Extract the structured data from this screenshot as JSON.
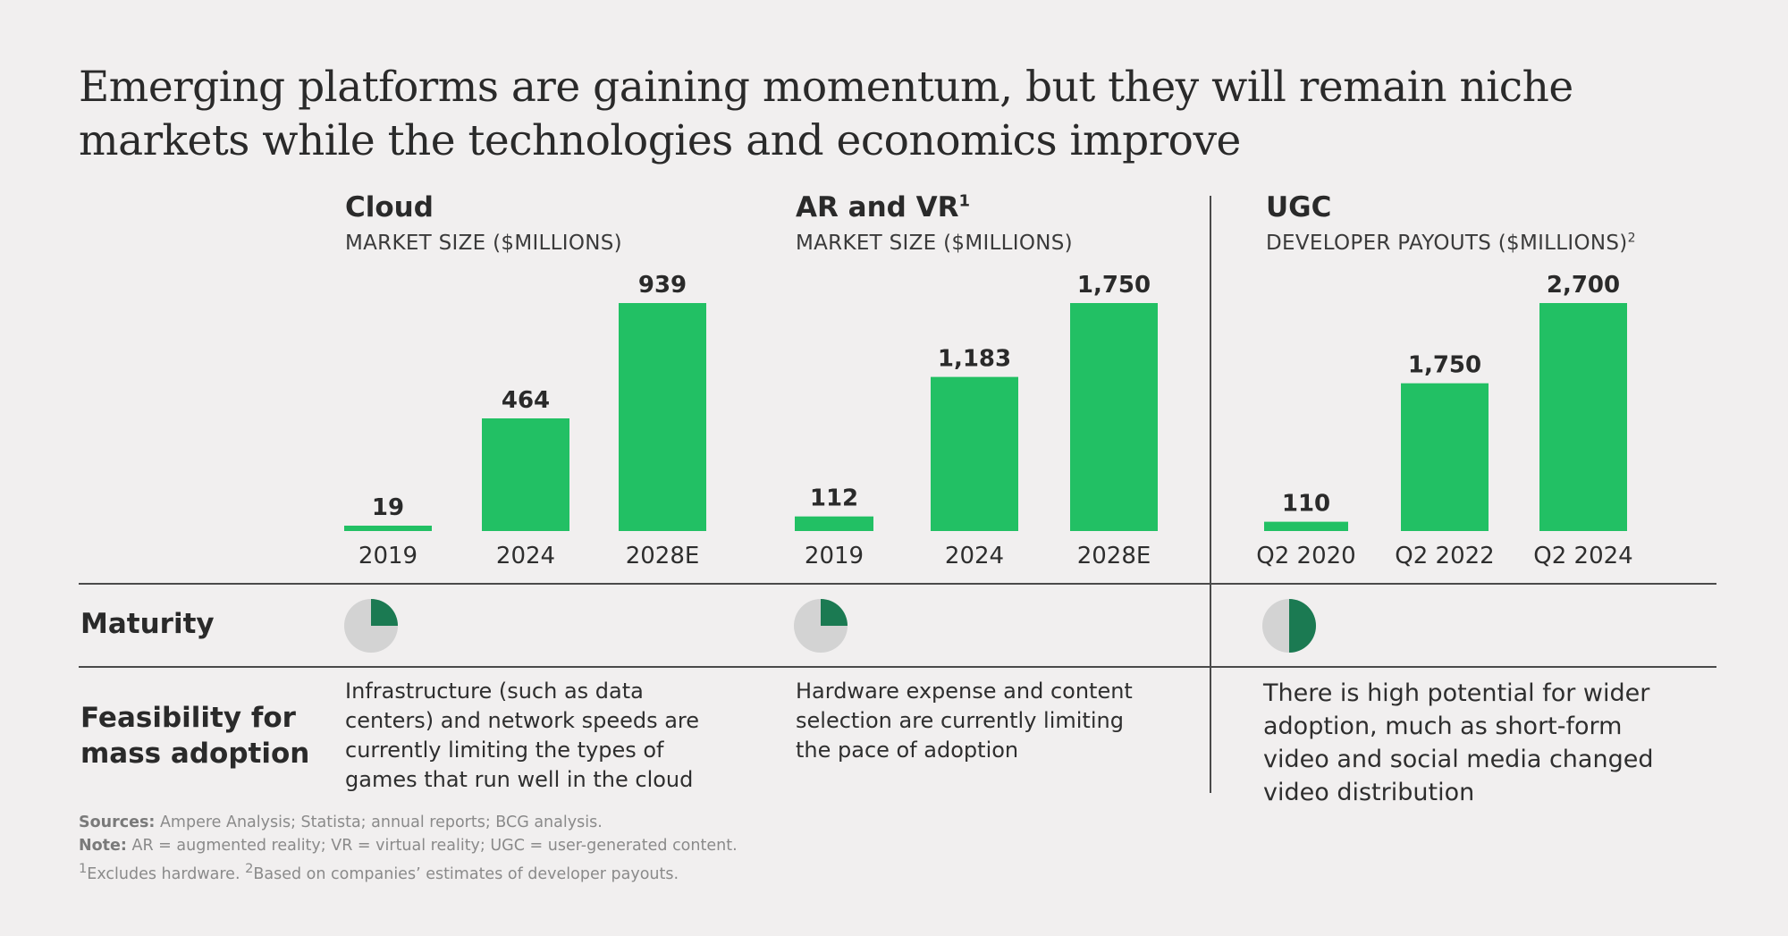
{
  "title": "Emerging platforms are gaining momentum, but they will remain niche markets while the technologies and economics improve",
  "colors": {
    "bar": "#22c064",
    "pie_fill": "#1b7a52",
    "pie_bg": "#d3d3d3",
    "rule": "#4a4a4a"
  },
  "panels": [
    {
      "title": "Cloud",
      "title_sup": "",
      "subtitle": "MARKET SIZE ($MILLIONS)",
      "subtitle_sup": ""
    },
    {
      "title": "AR and VR",
      "title_sup": "1",
      "subtitle": "MARKET SIZE ($MILLIONS)",
      "subtitle_sup": ""
    },
    {
      "title": "UGC",
      "title_sup": "",
      "subtitle": "DEVELOPER PAYOUTS ($MILLIONS)",
      "subtitle_sup": "2"
    }
  ],
  "chart_data": [
    {
      "type": "bar",
      "title": "Cloud",
      "ylabel": "MARKET SIZE ($MILLIONS)",
      "categories": [
        "2019",
        "2024",
        "2028E"
      ],
      "values": [
        19,
        464,
        939
      ],
      "labels": [
        "19",
        "464",
        "939"
      ],
      "ylim": [
        0,
        939
      ]
    },
    {
      "type": "bar",
      "title": "AR and VR",
      "ylabel": "MARKET SIZE ($MILLIONS)",
      "categories": [
        "2019",
        "2024",
        "2028E"
      ],
      "values": [
        112,
        1183,
        1750
      ],
      "labels": [
        "112",
        "1,183",
        "1,750"
      ],
      "ylim": [
        0,
        1750
      ]
    },
    {
      "type": "bar",
      "title": "UGC",
      "ylabel": "DEVELOPER PAYOUTS ($MILLIONS)",
      "categories": [
        "Q2 2020",
        "Q2 2022",
        "Q2 2024"
      ],
      "values": [
        110,
        1750,
        2700
      ],
      "labels": [
        "110",
        "1,750",
        "2,700"
      ],
      "ylim": [
        0,
        2700
      ]
    }
  ],
  "rows": {
    "maturity": "Maturity",
    "feasibility": "Feasibility for mass adoption"
  },
  "maturity": [
    {
      "panel": "Cloud",
      "fraction": 0.25
    },
    {
      "panel": "AR and VR",
      "fraction": 0.25
    },
    {
      "panel": "UGC",
      "fraction": 0.5
    }
  ],
  "feasibility": [
    "Infrastructure (such as data centers) and network speeds are currently limiting the types of games that run well in the cloud",
    "Hardware expense and content selection are currently limiting the pace of adoption",
    "There is high potential for wider adoption, much as short-form video and social media changed video distribution"
  ],
  "footnotes": {
    "sources_label": "Sources:",
    "sources": "Ampere Analysis; Statista; annual reports; BCG analysis.",
    "note_label": "Note:",
    "note": "AR = augmented reality; VR = virtual reality; UGC = user-generated content.",
    "fn1_mark": "1",
    "fn1": "Excludes hardware.",
    "fn2_mark": "2",
    "fn2": "Based on companies’ estimates of developer payouts."
  }
}
